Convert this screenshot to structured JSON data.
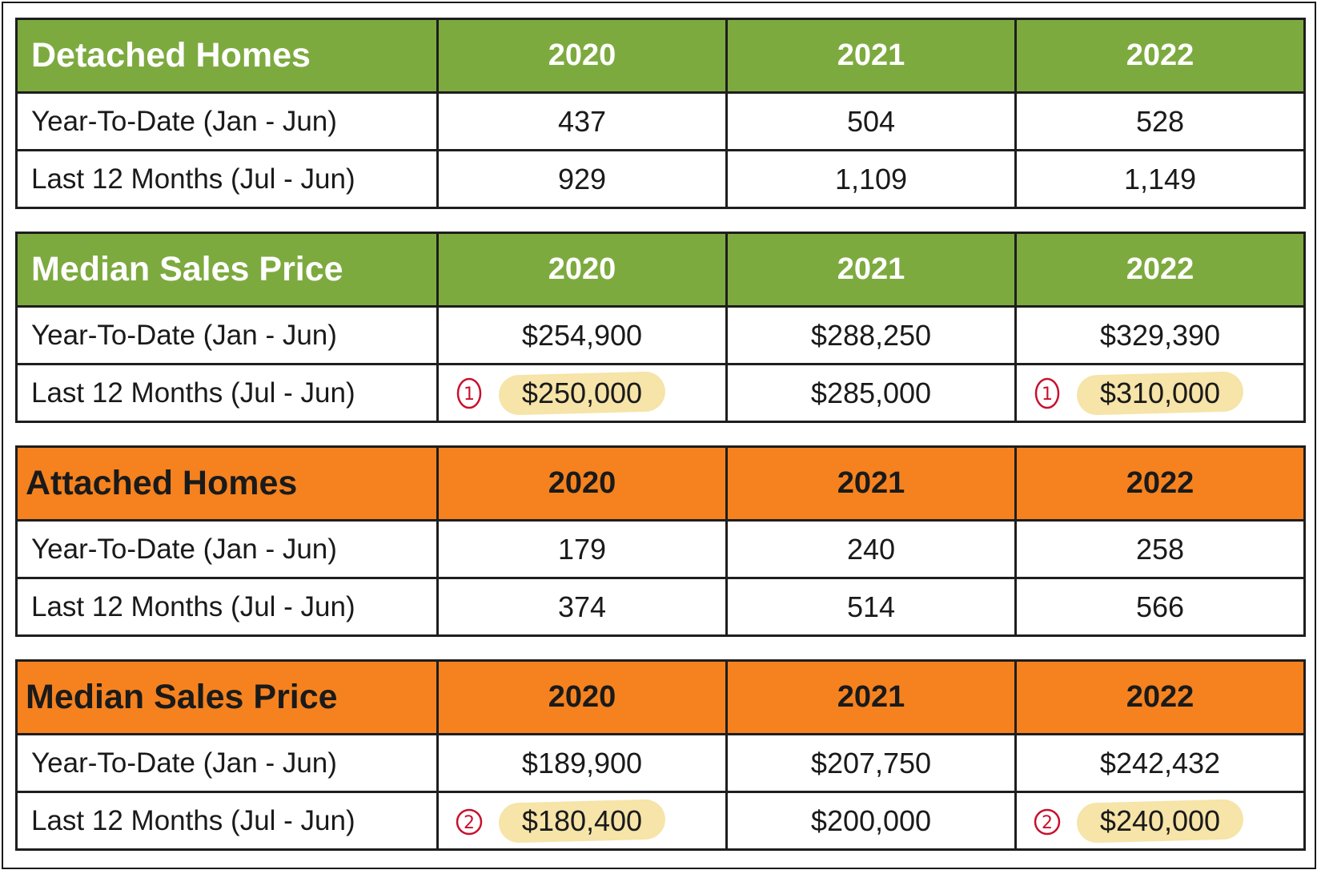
{
  "tables": [
    {
      "title": "Detached Homes",
      "theme": "green",
      "years": [
        "2020",
        "2021",
        "2022"
      ],
      "rows": [
        {
          "label": "Year-To-Date (Jan - Jun)",
          "values": [
            "437",
            "504",
            "528"
          ]
        },
        {
          "label": "Last 12 Months (Jul - Jun)",
          "values": [
            "929",
            "1,109",
            "1,149"
          ]
        }
      ]
    },
    {
      "title": "Median Sales Price",
      "theme": "green",
      "years": [
        "2020",
        "2021",
        "2022"
      ],
      "rows": [
        {
          "label": "Year-To-Date (Jan - Jun)",
          "values": [
            "$254,900",
            "$288,250",
            "$329,390"
          ]
        },
        {
          "label": "Last 12 Months (Jul - Jun)",
          "values": [
            "$250,000",
            "$285,000",
            "$310,000"
          ]
        }
      ]
    },
    {
      "title": "Attached Homes",
      "theme": "orange",
      "years": [
        "2020",
        "2021",
        "2022"
      ],
      "rows": [
        {
          "label": "Year-To-Date (Jan - Jun)",
          "values": [
            "179",
            "240",
            "258"
          ]
        },
        {
          "label": "Last 12 Months (Jul - Jun)",
          "values": [
            "374",
            "514",
            "566"
          ]
        }
      ]
    },
    {
      "title": "Median Sales Price",
      "theme": "orange",
      "years": [
        "2020",
        "2021",
        "2022"
      ],
      "rows": [
        {
          "label": "Year-To-Date (Jan - Jun)",
          "values": [
            "$189,900",
            "$207,750",
            "$242,432"
          ]
        },
        {
          "label": "Last 12 Months (Jul - Jun)",
          "values": [
            "$180,400",
            "$200,000",
            "$240,000"
          ]
        }
      ]
    }
  ],
  "annotations": {
    "note_1": "1",
    "note_2": "2",
    "highlight_color": "#f5e3a3",
    "note_color": "#c8102e"
  },
  "colors": {
    "green_header": "#7daa3f",
    "orange_header": "#f5821f",
    "border": "#1e1e1e"
  }
}
